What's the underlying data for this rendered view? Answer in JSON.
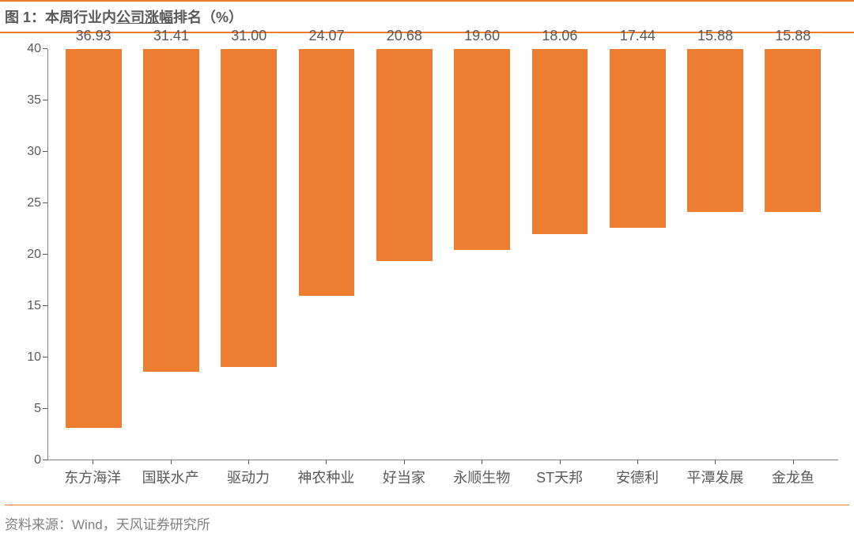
{
  "title_prefix": "图 1：本周行业内",
  "title_underline": "公司涨幅",
  "title_suffix": "排名（%）",
  "source": "资料来源：Wind，天风证券研究所",
  "chart": {
    "type": "bar",
    "accent_color": "#ed7d31",
    "bar_color": "#ed7d31",
    "background_color": "#ffffff",
    "axis_color": "#808080",
    "text_color": "#595959",
    "title_fontsize": 18,
    "label_fontsize": 18,
    "tick_fontsize": 16,
    "bar_width_pct": 72,
    "ylim": [
      0,
      40
    ],
    "ytick_step": 5,
    "yticks": [
      0,
      5,
      10,
      15,
      20,
      25,
      30,
      35,
      40
    ],
    "categories": [
      "东方海洋",
      "国联水产",
      "驱动力",
      "神农种业",
      "好当家",
      "永顺生物",
      "ST天邦",
      "安德利",
      "平潭发展",
      "金龙鱼"
    ],
    "values": [
      36.93,
      31.41,
      31.0,
      24.07,
      20.68,
      19.6,
      18.06,
      17.44,
      15.88,
      15.88
    ],
    "value_labels": [
      "36.93",
      "31.41",
      "31.00",
      "24.07",
      "20.68",
      "19.60",
      "18.06",
      "17.44",
      "15.88",
      "15.88"
    ]
  }
}
